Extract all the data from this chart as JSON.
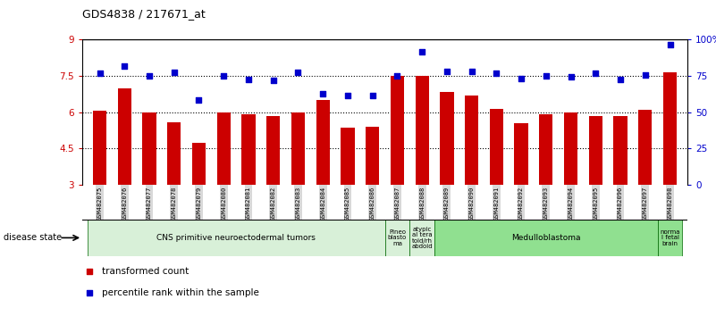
{
  "title": "GDS4838 / 217671_at",
  "samples": [
    "GSM482075",
    "GSM482076",
    "GSM482077",
    "GSM482078",
    "GSM482079",
    "GSM482080",
    "GSM482081",
    "GSM482082",
    "GSM482083",
    "GSM482084",
    "GSM482085",
    "GSM482086",
    "GSM482087",
    "GSM482088",
    "GSM482089",
    "GSM482090",
    "GSM482091",
    "GSM482092",
    "GSM482093",
    "GSM482094",
    "GSM482095",
    "GSM482096",
    "GSM482097",
    "GSM482098"
  ],
  "bar_values": [
    6.05,
    7.0,
    6.0,
    5.6,
    4.75,
    6.0,
    5.9,
    5.85,
    6.0,
    6.5,
    5.35,
    5.4,
    7.5,
    7.5,
    6.85,
    6.7,
    6.15,
    5.55,
    5.9,
    6.0,
    5.85,
    5.85,
    6.1,
    7.65
  ],
  "dot_values": [
    7.6,
    7.9,
    7.5,
    7.65,
    6.5,
    7.5,
    7.35,
    7.3,
    7.65,
    6.75,
    6.7,
    6.7,
    7.5,
    8.5,
    7.7,
    7.7,
    7.6,
    7.4,
    7.5,
    7.45,
    7.6,
    7.35,
    7.55,
    8.8
  ],
  "bar_color": "#cc0000",
  "dot_color": "#0000cc",
  "ymin": 3,
  "ymax": 9,
  "yticks_left": [
    3,
    4.5,
    6,
    7.5,
    9
  ],
  "ytick_labels_left": [
    "3",
    "4.5",
    "6",
    "7.5",
    "9"
  ],
  "ytick_labels_right": [
    "0",
    "25",
    "50",
    "75",
    "100%"
  ],
  "hlines": [
    4.5,
    6.0,
    7.5
  ],
  "disease_groups": [
    {
      "label": "CNS primitive neuroectodermal tumors",
      "start": 0,
      "end": 12,
      "color": "#d8f0d8"
    },
    {
      "label": "Pineo\nblasto\nma",
      "start": 12,
      "end": 13,
      "color": "#d8f0d8"
    },
    {
      "label": "atypic\nal tera\ntoid/rh\nabdoid",
      "start": 13,
      "end": 14,
      "color": "#d8f0d8"
    },
    {
      "label": "Medulloblastoma",
      "start": 14,
      "end": 23,
      "color": "#90e090"
    },
    {
      "label": "norma\nl fetal\nbrain",
      "start": 23,
      "end": 24,
      "color": "#90e090"
    }
  ],
  "legend_items": [
    {
      "label": "transformed count",
      "color": "#cc0000"
    },
    {
      "label": "percentile rank within the sample",
      "color": "#0000cc"
    }
  ],
  "disease_state_label": "disease state",
  "bar_width": 0.55,
  "background_color": "#ffffff",
  "tick_label_color_left": "#cc0000",
  "tick_label_color_right": "#0000cc",
  "xtick_bg_color": "#d8d8d8",
  "band_border_color": "#006600"
}
